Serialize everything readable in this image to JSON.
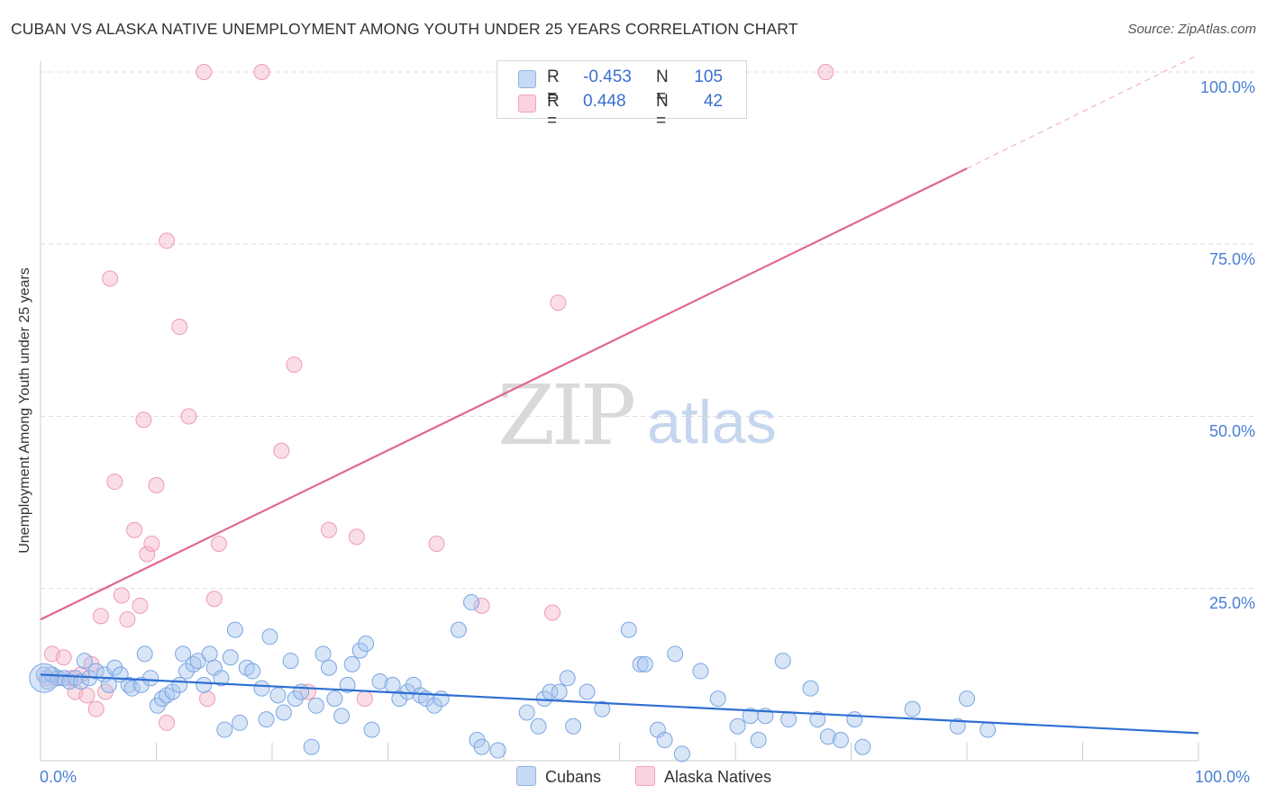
{
  "title": "CUBAN VS ALASKA NATIVE UNEMPLOYMENT AMONG YOUTH UNDER 25 YEARS CORRELATION CHART",
  "source": "Source: ZipAtlas.com",
  "watermark": {
    "zip": "ZIP",
    "atlas": "atlas"
  },
  "stats": [
    {
      "r_label": "R =",
      "r_value": "-0.453",
      "n_label": "N =",
      "n_value": "105",
      "color": "#a9c5ee"
    },
    {
      "r_label": "R =",
      "r_value": "0.448",
      "n_label": "N =",
      "n_value": "42",
      "color": "#f5b6c8"
    }
  ],
  "legend": [
    {
      "label": "Cubans",
      "color": "#a9c5ee"
    },
    {
      "label": "Alaska Natives",
      "color": "#f5b6c8"
    }
  ],
  "chart_data": {
    "type": "scatter",
    "xlabel": "",
    "ylabel": "Unemployment Among Youth under 25 years",
    "xlim": [
      0,
      100
    ],
    "ylim": [
      0,
      100
    ],
    "x_tick_labels": [
      "0.0%",
      "100.0%"
    ],
    "y_tick_labels": [
      "25.0%",
      "50.0%",
      "75.0%",
      "100.0%"
    ],
    "grid": true,
    "series": [
      {
        "name": "Cubans",
        "color": "#7aa6e3",
        "trend": {
          "x": [
            0,
            100
          ],
          "y": [
            12.5,
            4.0
          ],
          "color": "#2e6fd1"
        },
        "points": [
          [
            0.3,
            12.5
          ],
          [
            0.6,
            11.5
          ],
          [
            1.0,
            12.5
          ],
          [
            1.5,
            12.0
          ],
          [
            2.0,
            12.0
          ],
          [
            2.5,
            11.5
          ],
          [
            3.0,
            12.0
          ],
          [
            3.5,
            11.5
          ],
          [
            3.8,
            14.5
          ],
          [
            4.2,
            12.0
          ],
          [
            4.8,
            13.0
          ],
          [
            5.5,
            12.5
          ],
          [
            5.9,
            11.0
          ],
          [
            6.4,
            13.5
          ],
          [
            6.9,
            12.5
          ],
          [
            7.6,
            11.0
          ],
          [
            7.9,
            10.5
          ],
          [
            8.7,
            11.0
          ],
          [
            9.0,
            15.5
          ],
          [
            9.5,
            12.0
          ],
          [
            10.1,
            8.0
          ],
          [
            10.5,
            9.0
          ],
          [
            10.9,
            9.5
          ],
          [
            11.4,
            10.0
          ],
          [
            12.0,
            11.0
          ],
          [
            12.3,
            15.5
          ],
          [
            12.6,
            13.0
          ],
          [
            13.2,
            14.0
          ],
          [
            13.6,
            14.5
          ],
          [
            14.1,
            11.0
          ],
          [
            14.6,
            15.5
          ],
          [
            15.0,
            13.5
          ],
          [
            15.6,
            12.0
          ],
          [
            15.9,
            4.5
          ],
          [
            16.4,
            15.0
          ],
          [
            16.8,
            19.0
          ],
          [
            17.2,
            5.5
          ],
          [
            17.8,
            13.5
          ],
          [
            18.3,
            13.0
          ],
          [
            19.1,
            10.5
          ],
          [
            19.5,
            6.0
          ],
          [
            19.8,
            18.0
          ],
          [
            20.5,
            9.5
          ],
          [
            21.0,
            7.0
          ],
          [
            21.6,
            14.5
          ],
          [
            22.0,
            9.0
          ],
          [
            22.5,
            10.0
          ],
          [
            23.4,
            2.0
          ],
          [
            23.8,
            8.0
          ],
          [
            24.4,
            15.5
          ],
          [
            24.9,
            13.5
          ],
          [
            25.4,
            9.0
          ],
          [
            26.0,
            6.5
          ],
          [
            26.5,
            11.0
          ],
          [
            26.9,
            14.0
          ],
          [
            27.6,
            16.0
          ],
          [
            28.1,
            17.0
          ],
          [
            28.6,
            4.5
          ],
          [
            29.3,
            11.5
          ],
          [
            30.4,
            11.0
          ],
          [
            31.0,
            9.0
          ],
          [
            31.7,
            10.0
          ],
          [
            32.2,
            11.0
          ],
          [
            32.8,
            9.5
          ],
          [
            33.3,
            9.0
          ],
          [
            34.0,
            8.0
          ],
          [
            34.6,
            9.0
          ],
          [
            36.1,
            19.0
          ],
          [
            37.2,
            23.0
          ],
          [
            37.7,
            3.0
          ],
          [
            38.1,
            2.0
          ],
          [
            39.5,
            1.5
          ],
          [
            42.0,
            7.0
          ],
          [
            43.0,
            5.0
          ],
          [
            43.5,
            9.0
          ],
          [
            44.0,
            10.0
          ],
          [
            44.8,
            10.0
          ],
          [
            45.5,
            12.0
          ],
          [
            46.0,
            5.0
          ],
          [
            47.2,
            10.0
          ],
          [
            48.5,
            7.5
          ],
          [
            50.8,
            19.0
          ],
          [
            51.8,
            14.0
          ],
          [
            52.2,
            14.0
          ],
          [
            53.3,
            4.5
          ],
          [
            53.9,
            3.0
          ],
          [
            54.8,
            15.5
          ],
          [
            55.4,
            1.0
          ],
          [
            57.0,
            13.0
          ],
          [
            58.5,
            9.0
          ],
          [
            60.2,
            5.0
          ],
          [
            61.3,
            6.5
          ],
          [
            62.0,
            3.0
          ],
          [
            62.6,
            6.5
          ],
          [
            64.1,
            14.5
          ],
          [
            64.6,
            6.0
          ],
          [
            66.5,
            10.5
          ],
          [
            67.1,
            6.0
          ],
          [
            68.0,
            3.5
          ],
          [
            69.1,
            3.0
          ],
          [
            70.3,
            6.0
          ],
          [
            71.0,
            2.0
          ],
          [
            75.3,
            7.5
          ],
          [
            79.2,
            5.0
          ],
          [
            80.0,
            9.0
          ],
          [
            81.8,
            4.5
          ]
        ]
      },
      {
        "name": "Alaska Natives",
        "color": "#f19ab6",
        "trend": {
          "x": [
            0,
            80
          ],
          "y": [
            20.5,
            86.0
          ],
          "dash_to": [
            100,
            102.5
          ],
          "color": "#e0678f"
        },
        "points": [
          [
            0.5,
            12.0
          ],
          [
            1.0,
            15.5
          ],
          [
            1.5,
            12.0
          ],
          [
            2.0,
            15.0
          ],
          [
            2.6,
            12.0
          ],
          [
            3.0,
            10.0
          ],
          [
            3.5,
            12.5
          ],
          [
            4.0,
            9.5
          ],
          [
            4.4,
            14.0
          ],
          [
            4.8,
            7.5
          ],
          [
            5.2,
            21.0
          ],
          [
            5.6,
            10.0
          ],
          [
            6.0,
            70.0
          ],
          [
            6.4,
            40.5
          ],
          [
            7.0,
            24.0
          ],
          [
            7.5,
            20.5
          ],
          [
            8.1,
            33.5
          ],
          [
            8.6,
            22.5
          ],
          [
            8.9,
            49.5
          ],
          [
            9.2,
            30.0
          ],
          [
            9.6,
            31.5
          ],
          [
            10.0,
            40.0
          ],
          [
            10.9,
            75.5
          ],
          [
            10.9,
            5.5
          ],
          [
            12.0,
            63.0
          ],
          [
            12.8,
            50.0
          ],
          [
            14.1,
            100.0
          ],
          [
            14.4,
            9.0
          ],
          [
            15.0,
            23.5
          ],
          [
            15.4,
            31.5
          ],
          [
            19.1,
            100.0
          ],
          [
            20.8,
            45.0
          ],
          [
            21.9,
            57.5
          ],
          [
            23.1,
            10.0
          ],
          [
            24.9,
            33.5
          ],
          [
            27.3,
            32.5
          ],
          [
            28.0,
            9.0
          ],
          [
            34.2,
            31.5
          ],
          [
            38.1,
            22.5
          ],
          [
            44.2,
            21.5
          ],
          [
            44.7,
            66.5
          ],
          [
            67.8,
            100.0
          ]
        ]
      }
    ]
  }
}
